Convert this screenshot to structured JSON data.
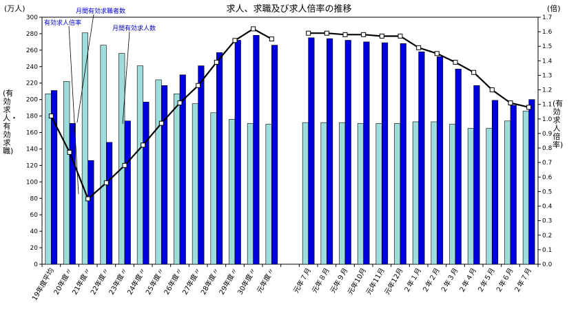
{
  "chart_data": {
    "type": "bar",
    "title": "求人、求職及び求人倍率の推移",
    "left_unit": "(万人)",
    "right_unit": "(倍)",
    "ylabel": "(有効求人・有効求職)",
    "y2label": "(有効求人倍率)",
    "ylim": [
      0,
      300
    ],
    "y2lim": [
      0,
      1.7
    ],
    "yticks": [
      "0",
      "20",
      "40",
      "60",
      "80",
      "100",
      "120",
      "140",
      "160",
      "180",
      "200",
      "220",
      "240",
      "260",
      "280",
      "300"
    ],
    "y2ticks": [
      "0.0",
      "0.1",
      "0.2",
      "0.3",
      "0.4",
      "0.5",
      "0.6",
      "0.7",
      "0.8",
      "0.9",
      "1.0",
      "1.1",
      "1.2",
      "1.3",
      "1.4",
      "1.5",
      "1.6",
      "1.7"
    ],
    "categories": [
      "19年度平均",
      "20年度〃",
      "21年度〃",
      "22年度〃",
      "23年度〃",
      "24年度〃",
      "25年度〃",
      "26年度〃",
      "27年度〃",
      "28年度〃",
      "29年度〃",
      "30年度〃",
      "元年度〃",
      "",
      "元年７月",
      "元年８月",
      "元年９月",
      "元年10月",
      "元年11月",
      "元年12月",
      "２年１月",
      "２年２月",
      "２年３月",
      "２年４月",
      "２年５月",
      "２年６月",
      "２年７月"
    ],
    "series": [
      {
        "name": "月間有効求職者数",
        "kind": "bar",
        "color": "#9fdcdc",
        "values": [
          207,
          222,
          281,
          266,
          256,
          241,
          224,
          207,
          195,
          184,
          176,
          171,
          170,
          null,
          172,
          172,
          172,
          171,
          171,
          171,
          173,
          173,
          170,
          165,
          165,
          174,
          186
        ]
      },
      {
        "name": "月間有効求人数",
        "kind": "bar",
        "color": "#0000dd",
        "values": [
          211,
          171,
          126,
          148,
          174,
          197,
          217,
          230,
          241,
          257,
          272,
          278,
          266,
          null,
          275,
          274,
          272,
          270,
          269,
          268,
          258,
          252,
          237,
          217,
          199,
          193,
          200
        ]
      },
      {
        "name": "有効求人倍率",
        "kind": "line",
        "axis": "right",
        "color": "#000000",
        "values": [
          1.02,
          0.77,
          0.45,
          0.56,
          0.68,
          0.82,
          0.97,
          1.11,
          1.23,
          1.39,
          1.54,
          1.62,
          1.55,
          null,
          1.59,
          1.59,
          1.58,
          1.58,
          1.57,
          1.57,
          1.49,
          1.45,
          1.39,
          1.32,
          1.2,
          1.11,
          1.08
        ]
      }
    ],
    "annotations": [
      "有効求人倍率",
      "月間有効求職者数",
      "月間有効求人数"
    ],
    "grid": false
  }
}
